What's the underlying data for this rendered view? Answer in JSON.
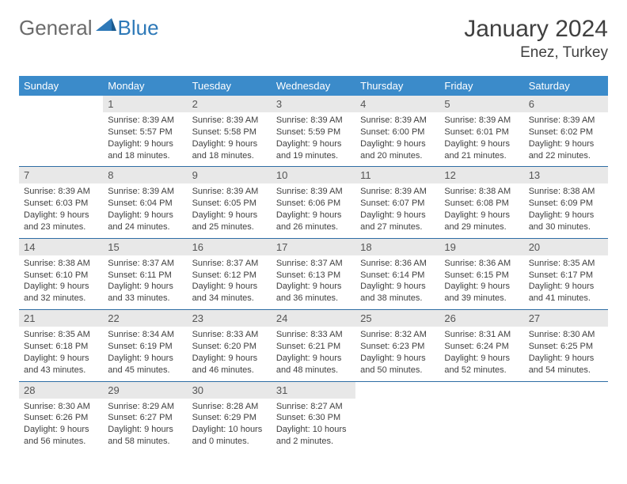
{
  "logo": {
    "general": "General",
    "blue": "Blue"
  },
  "title": "January 2024",
  "location": "Enez, Turkey",
  "colors": {
    "header_bg": "#3b8bca",
    "header_text": "#ffffff",
    "daynum_bg": "#e8e8e8",
    "border": "#2e6da4",
    "body_text": "#404040",
    "logo_general": "#6b6b6b",
    "logo_blue": "#2e79b8"
  },
  "weekdays": [
    "Sunday",
    "Monday",
    "Tuesday",
    "Wednesday",
    "Thursday",
    "Friday",
    "Saturday"
  ],
  "grid": {
    "first_weekday_index": 1,
    "days_in_month": 31
  },
  "days": {
    "1": {
      "sunrise": "8:39 AM",
      "sunset": "5:57 PM",
      "daylight": "9 hours and 18 minutes."
    },
    "2": {
      "sunrise": "8:39 AM",
      "sunset": "5:58 PM",
      "daylight": "9 hours and 18 minutes."
    },
    "3": {
      "sunrise": "8:39 AM",
      "sunset": "5:59 PM",
      "daylight": "9 hours and 19 minutes."
    },
    "4": {
      "sunrise": "8:39 AM",
      "sunset": "6:00 PM",
      "daylight": "9 hours and 20 minutes."
    },
    "5": {
      "sunrise": "8:39 AM",
      "sunset": "6:01 PM",
      "daylight": "9 hours and 21 minutes."
    },
    "6": {
      "sunrise": "8:39 AM",
      "sunset": "6:02 PM",
      "daylight": "9 hours and 22 minutes."
    },
    "7": {
      "sunrise": "8:39 AM",
      "sunset": "6:03 PM",
      "daylight": "9 hours and 23 minutes."
    },
    "8": {
      "sunrise": "8:39 AM",
      "sunset": "6:04 PM",
      "daylight": "9 hours and 24 minutes."
    },
    "9": {
      "sunrise": "8:39 AM",
      "sunset": "6:05 PM",
      "daylight": "9 hours and 25 minutes."
    },
    "10": {
      "sunrise": "8:39 AM",
      "sunset": "6:06 PM",
      "daylight": "9 hours and 26 minutes."
    },
    "11": {
      "sunrise": "8:39 AM",
      "sunset": "6:07 PM",
      "daylight": "9 hours and 27 minutes."
    },
    "12": {
      "sunrise": "8:38 AM",
      "sunset": "6:08 PM",
      "daylight": "9 hours and 29 minutes."
    },
    "13": {
      "sunrise": "8:38 AM",
      "sunset": "6:09 PM",
      "daylight": "9 hours and 30 minutes."
    },
    "14": {
      "sunrise": "8:38 AM",
      "sunset": "6:10 PM",
      "daylight": "9 hours and 32 minutes."
    },
    "15": {
      "sunrise": "8:37 AM",
      "sunset": "6:11 PM",
      "daylight": "9 hours and 33 minutes."
    },
    "16": {
      "sunrise": "8:37 AM",
      "sunset": "6:12 PM",
      "daylight": "9 hours and 34 minutes."
    },
    "17": {
      "sunrise": "8:37 AM",
      "sunset": "6:13 PM",
      "daylight": "9 hours and 36 minutes."
    },
    "18": {
      "sunrise": "8:36 AM",
      "sunset": "6:14 PM",
      "daylight": "9 hours and 38 minutes."
    },
    "19": {
      "sunrise": "8:36 AM",
      "sunset": "6:15 PM",
      "daylight": "9 hours and 39 minutes."
    },
    "20": {
      "sunrise": "8:35 AM",
      "sunset": "6:17 PM",
      "daylight": "9 hours and 41 minutes."
    },
    "21": {
      "sunrise": "8:35 AM",
      "sunset": "6:18 PM",
      "daylight": "9 hours and 43 minutes."
    },
    "22": {
      "sunrise": "8:34 AM",
      "sunset": "6:19 PM",
      "daylight": "9 hours and 45 minutes."
    },
    "23": {
      "sunrise": "8:33 AM",
      "sunset": "6:20 PM",
      "daylight": "9 hours and 46 minutes."
    },
    "24": {
      "sunrise": "8:33 AM",
      "sunset": "6:21 PM",
      "daylight": "9 hours and 48 minutes."
    },
    "25": {
      "sunrise": "8:32 AM",
      "sunset": "6:23 PM",
      "daylight": "9 hours and 50 minutes."
    },
    "26": {
      "sunrise": "8:31 AM",
      "sunset": "6:24 PM",
      "daylight": "9 hours and 52 minutes."
    },
    "27": {
      "sunrise": "8:30 AM",
      "sunset": "6:25 PM",
      "daylight": "9 hours and 54 minutes."
    },
    "28": {
      "sunrise": "8:30 AM",
      "sunset": "6:26 PM",
      "daylight": "9 hours and 56 minutes."
    },
    "29": {
      "sunrise": "8:29 AM",
      "sunset": "6:27 PM",
      "daylight": "9 hours and 58 minutes."
    },
    "30": {
      "sunrise": "8:28 AM",
      "sunset": "6:29 PM",
      "daylight": "10 hours and 0 minutes."
    },
    "31": {
      "sunrise": "8:27 AM",
      "sunset": "6:30 PM",
      "daylight": "10 hours and 2 minutes."
    }
  },
  "labels": {
    "sunrise": "Sunrise:",
    "sunset": "Sunset:",
    "daylight": "Daylight:"
  }
}
